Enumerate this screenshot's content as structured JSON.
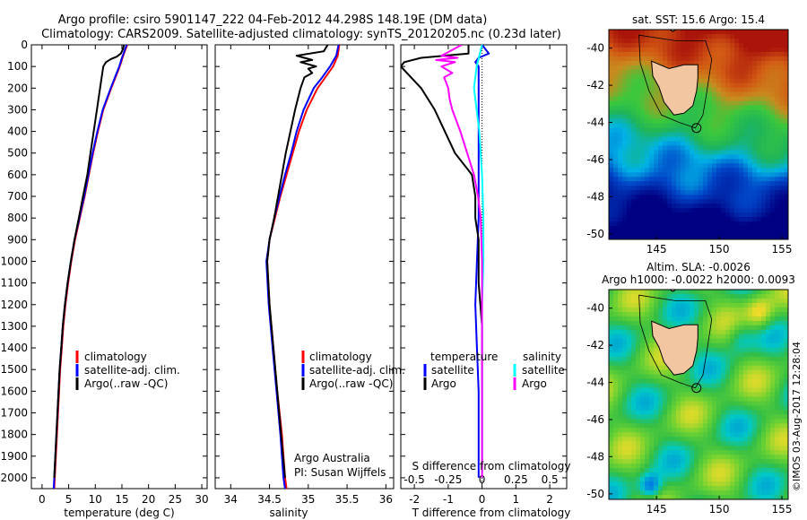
{
  "header": {
    "line1": "Argo profile: csiro 5901147_222 04-Feb-2012 44.298S 148.19E (DM data)",
    "line2": "Climatology: CARS2009. Satellite-adjusted climatology: synTS_20120205.nc (0.23d later)"
  },
  "depth_ticks": [
    "0",
    "100",
    "200",
    "300",
    "400",
    "500",
    "600",
    "700",
    "800",
    "900",
    "1000",
    "1100",
    "1200",
    "1300",
    "1400",
    "1500",
    "1600",
    "1700",
    "1800",
    "1900",
    "2000"
  ],
  "colors": {
    "climatology": "#ff0000",
    "satellite": "#0000ff",
    "argo": "#000000",
    "salinity_satellite": "#00ffff",
    "salinity_argo": "#ff00ff"
  },
  "chart_data": [
    {
      "type": "line",
      "name": "temperature-profile",
      "xlabel": "temperature (deg C)",
      "xlim": [
        -2,
        31
      ],
      "ylim": [
        2050,
        0
      ],
      "xticks": [
        0,
        5,
        10,
        15,
        20,
        25,
        30
      ],
      "xtick_labels": [
        "0",
        "5",
        "10",
        "15",
        "20",
        "25",
        "30"
      ],
      "legend": [
        "climatology",
        "satellite-adj. clim.",
        "Argo(..raw -QC)"
      ],
      "legend_position": "center",
      "series": [
        {
          "name": "climatology",
          "color": "#ff0000",
          "depth": [
            0,
            20,
            40,
            60,
            100,
            150,
            200,
            300,
            400,
            500,
            600,
            700,
            800,
            900,
            1000,
            1100,
            1200,
            1300,
            1400,
            1500,
            1600,
            1700,
            1800,
            1900,
            2000,
            2050
          ],
          "values": [
            16,
            15.7,
            15.4,
            15.1,
            14.6,
            13.8,
            13.0,
            11.5,
            10.5,
            9.6,
            8.8,
            8.0,
            7.1,
            6.2,
            5.5,
            4.9,
            4.4,
            4.0,
            3.7,
            3.4,
            3.2,
            3.0,
            2.8,
            2.6,
            2.4,
            2.3
          ]
        },
        {
          "name": "satellite-adj. clim.",
          "color": "#0000ff",
          "depth": [
            0,
            20,
            40,
            60,
            100,
            150,
            200,
            300,
            400,
            500,
            600,
            700,
            800,
            900,
            1000,
            1100,
            1200,
            1300,
            1400,
            1500,
            1600,
            1700,
            1800,
            1900,
            2000,
            2050
          ],
          "values": [
            15.9,
            15.6,
            15.3,
            15.0,
            14.5,
            13.7,
            12.9,
            11.4,
            10.4,
            9.5,
            8.7,
            7.9,
            7.0,
            6.1,
            5.4,
            4.8,
            4.3,
            3.9,
            3.6,
            3.3,
            3.1,
            2.9,
            2.7,
            2.5,
            2.3,
            2.2
          ]
        },
        {
          "name": "Argo(..raw -QC)",
          "color": "#000000",
          "depth": [
            0,
            20,
            40,
            55,
            65,
            80,
            100,
            150,
            200,
            300,
            400,
            500,
            600,
            700,
            800,
            900,
            1000,
            1100,
            1200,
            1300,
            1400,
            1500,
            1600,
            1700,
            1800,
            1900,
            2000
          ],
          "values": [
            15.4,
            15.2,
            14.8,
            14.0,
            13.0,
            12.0,
            11.5,
            11.2,
            10.9,
            10.3,
            9.7,
            9.1,
            8.5,
            7.7,
            6.9,
            6.1,
            5.4,
            4.8,
            4.3,
            3.9,
            3.6,
            3.3,
            3.1,
            2.9,
            2.7,
            2.5,
            2.3
          ]
        }
      ]
    },
    {
      "type": "line",
      "name": "salinity-profile",
      "xlabel": "salinity",
      "xlim": [
        33.8,
        36.1
      ],
      "ylim": [
        2050,
        0
      ],
      "xticks": [
        34,
        34.5,
        35,
        35.5,
        36
      ],
      "xtick_labels": [
        "34",
        "34.5",
        "35",
        "35.5",
        "36"
      ],
      "legend": [
        "climatology",
        "satellite-adj. clim.",
        "Argo(..raw -QC)"
      ],
      "legend_position": "center",
      "annotation": [
        "Argo Australia",
        "PI: Susan Wijffels"
      ],
      "series": [
        {
          "name": "climatology",
          "color": "#ff0000",
          "depth": [
            0,
            50,
            100,
            150,
            200,
            300,
            400,
            500,
            600,
            700,
            800,
            900,
            1000,
            1200,
            1400,
            1600,
            1800,
            2000,
            2050
          ],
          "values": [
            35.4,
            35.38,
            35.32,
            35.22,
            35.12,
            34.98,
            34.88,
            34.8,
            34.72,
            34.64,
            34.57,
            34.5,
            34.47,
            34.5,
            34.55,
            34.6,
            34.66,
            34.7,
            34.72
          ]
        },
        {
          "name": "satellite-adj. clim.",
          "color": "#0000ff",
          "depth": [
            0,
            50,
            100,
            150,
            200,
            300,
            400,
            500,
            600,
            700,
            800,
            900,
            1000,
            1200,
            1400,
            1600,
            1800,
            2000,
            2050
          ],
          "values": [
            35.39,
            35.36,
            35.28,
            35.18,
            35.07,
            34.94,
            34.85,
            34.78,
            34.7,
            34.63,
            34.56,
            34.5,
            34.46,
            34.49,
            34.54,
            34.59,
            34.64,
            34.68,
            34.7
          ]
        },
        {
          "name": "Argo(..raw -QC)",
          "color": "#000000",
          "depth": [
            0,
            30,
            50,
            70,
            80,
            100,
            110,
            130,
            150,
            200,
            300,
            400,
            500,
            600,
            700,
            800,
            900,
            1000,
            1200,
            1400,
            1600,
            1800,
            2000
          ],
          "values": [
            35.25,
            35.2,
            34.85,
            35.05,
            34.9,
            35.1,
            35.0,
            35.05,
            34.95,
            34.9,
            34.83,
            34.77,
            34.71,
            34.66,
            34.61,
            34.56,
            34.5,
            34.47,
            34.5,
            34.55,
            34.6,
            34.65,
            34.7
          ]
        }
      ]
    },
    {
      "type": "line",
      "name": "difference-profile",
      "xlabel": "T difference from climatology",
      "xlabel_top": "S difference from climatology",
      "xlim": [
        -2.4,
        2.5
      ],
      "ylim": [
        2050,
        0
      ],
      "xticks": [
        -2,
        -1,
        0,
        1,
        2
      ],
      "xtick_labels": [
        "-2",
        "-1",
        "0",
        "1",
        "2"
      ],
      "s_ticks": [
        -0.5,
        -0.25,
        0,
        0.25,
        0.5
      ],
      "s_tick_labels": [
        "-0.5",
        "-0.25",
        "0",
        "0.25",
        "0.5"
      ],
      "legend_temperature": {
        "header": "temperature",
        "items": [
          "satellite",
          "Argo"
        ]
      },
      "legend_salinity": {
        "header": "salinity",
        "items": [
          "satellite",
          "Argo"
        ]
      },
      "series": [
        {
          "name": "temperature satellite",
          "color": "#0000ff",
          "depth": [
            0,
            40,
            60,
            80,
            100,
            150,
            200,
            400,
            600,
            800,
            1000,
            1200,
            1400,
            1600,
            1800,
            2000
          ],
          "values": [
            0,
            0.2,
            -0.1,
            -0.2,
            -0.1,
            -0.1,
            -0.1,
            -0.1,
            -0.1,
            -0.1,
            -0.15,
            -0.2,
            -0.15,
            -0.1,
            -0.1,
            -0.1
          ]
        },
        {
          "name": "temperature Argo",
          "color": "#000000",
          "depth": [
            0,
            40,
            50,
            60,
            80,
            100,
            150,
            200,
            300,
            400,
            500,
            600,
            700,
            800,
            900,
            1000,
            1100,
            1200,
            1300,
            1400,
            1500,
            1600,
            1800,
            2000
          ],
          "values": [
            -0.4,
            -0.4,
            -1.1,
            -1.8,
            -2.3,
            -2.4,
            -2.1,
            -1.8,
            -1.4,
            -1.1,
            -0.8,
            -0.3,
            -0.2,
            -0.2,
            -0.1,
            -0.1,
            -0.1,
            -0.05,
            0,
            0,
            0,
            0,
            0,
            0
          ]
        },
        {
          "name": "salinity satellite",
          "color": "#00ffff",
          "depth": [
            0,
            50,
            100,
            200,
            400,
            600,
            800,
            1000,
            1200,
            1400,
            1600,
            1800,
            2000
          ],
          "values": [
            0,
            -0.02,
            -0.04,
            -0.06,
            -0.02,
            0,
            0.01,
            0.01,
            0,
            0,
            0,
            0,
            0
          ]
        },
        {
          "name": "salinity Argo",
          "color": "#ff00ff",
          "depth": [
            0,
            50,
            60,
            70,
            80,
            100,
            130,
            150,
            200,
            250,
            300,
            400,
            500,
            600,
            700,
            800,
            1000,
            1200,
            1400,
            1600,
            1800,
            2000
          ],
          "values": [
            -0.15,
            -0.3,
            -0.18,
            -0.34,
            -0.2,
            -0.3,
            -0.22,
            -0.28,
            -0.25,
            -0.24,
            -0.22,
            -0.16,
            -0.11,
            -0.06,
            -0.03,
            -0.01,
            0,
            0,
            0,
            0,
            0,
            0
          ]
        }
      ]
    }
  ],
  "maps": [
    {
      "title": "sat. SST: 15.6 Argo: 15.4",
      "title2": "",
      "kind": "sst",
      "xticks": [
        "145",
        "150",
        "155"
      ],
      "yticks": [
        "-40",
        "-42",
        "-44",
        "-46",
        "-48",
        "-50"
      ]
    },
    {
      "title": "Altim. SLA: -0.0026",
      "title2": "Argo h1000: -0.0022 h2000: 0.0093",
      "kind": "sla",
      "xticks": [
        "145",
        "150",
        "155"
      ],
      "yticks": [
        "-40",
        "-42",
        "-44",
        "-46",
        "-48",
        "-50"
      ]
    }
  ],
  "footer": {
    "credit": "©IMOS 03-Aug-2017 12:28:04"
  }
}
